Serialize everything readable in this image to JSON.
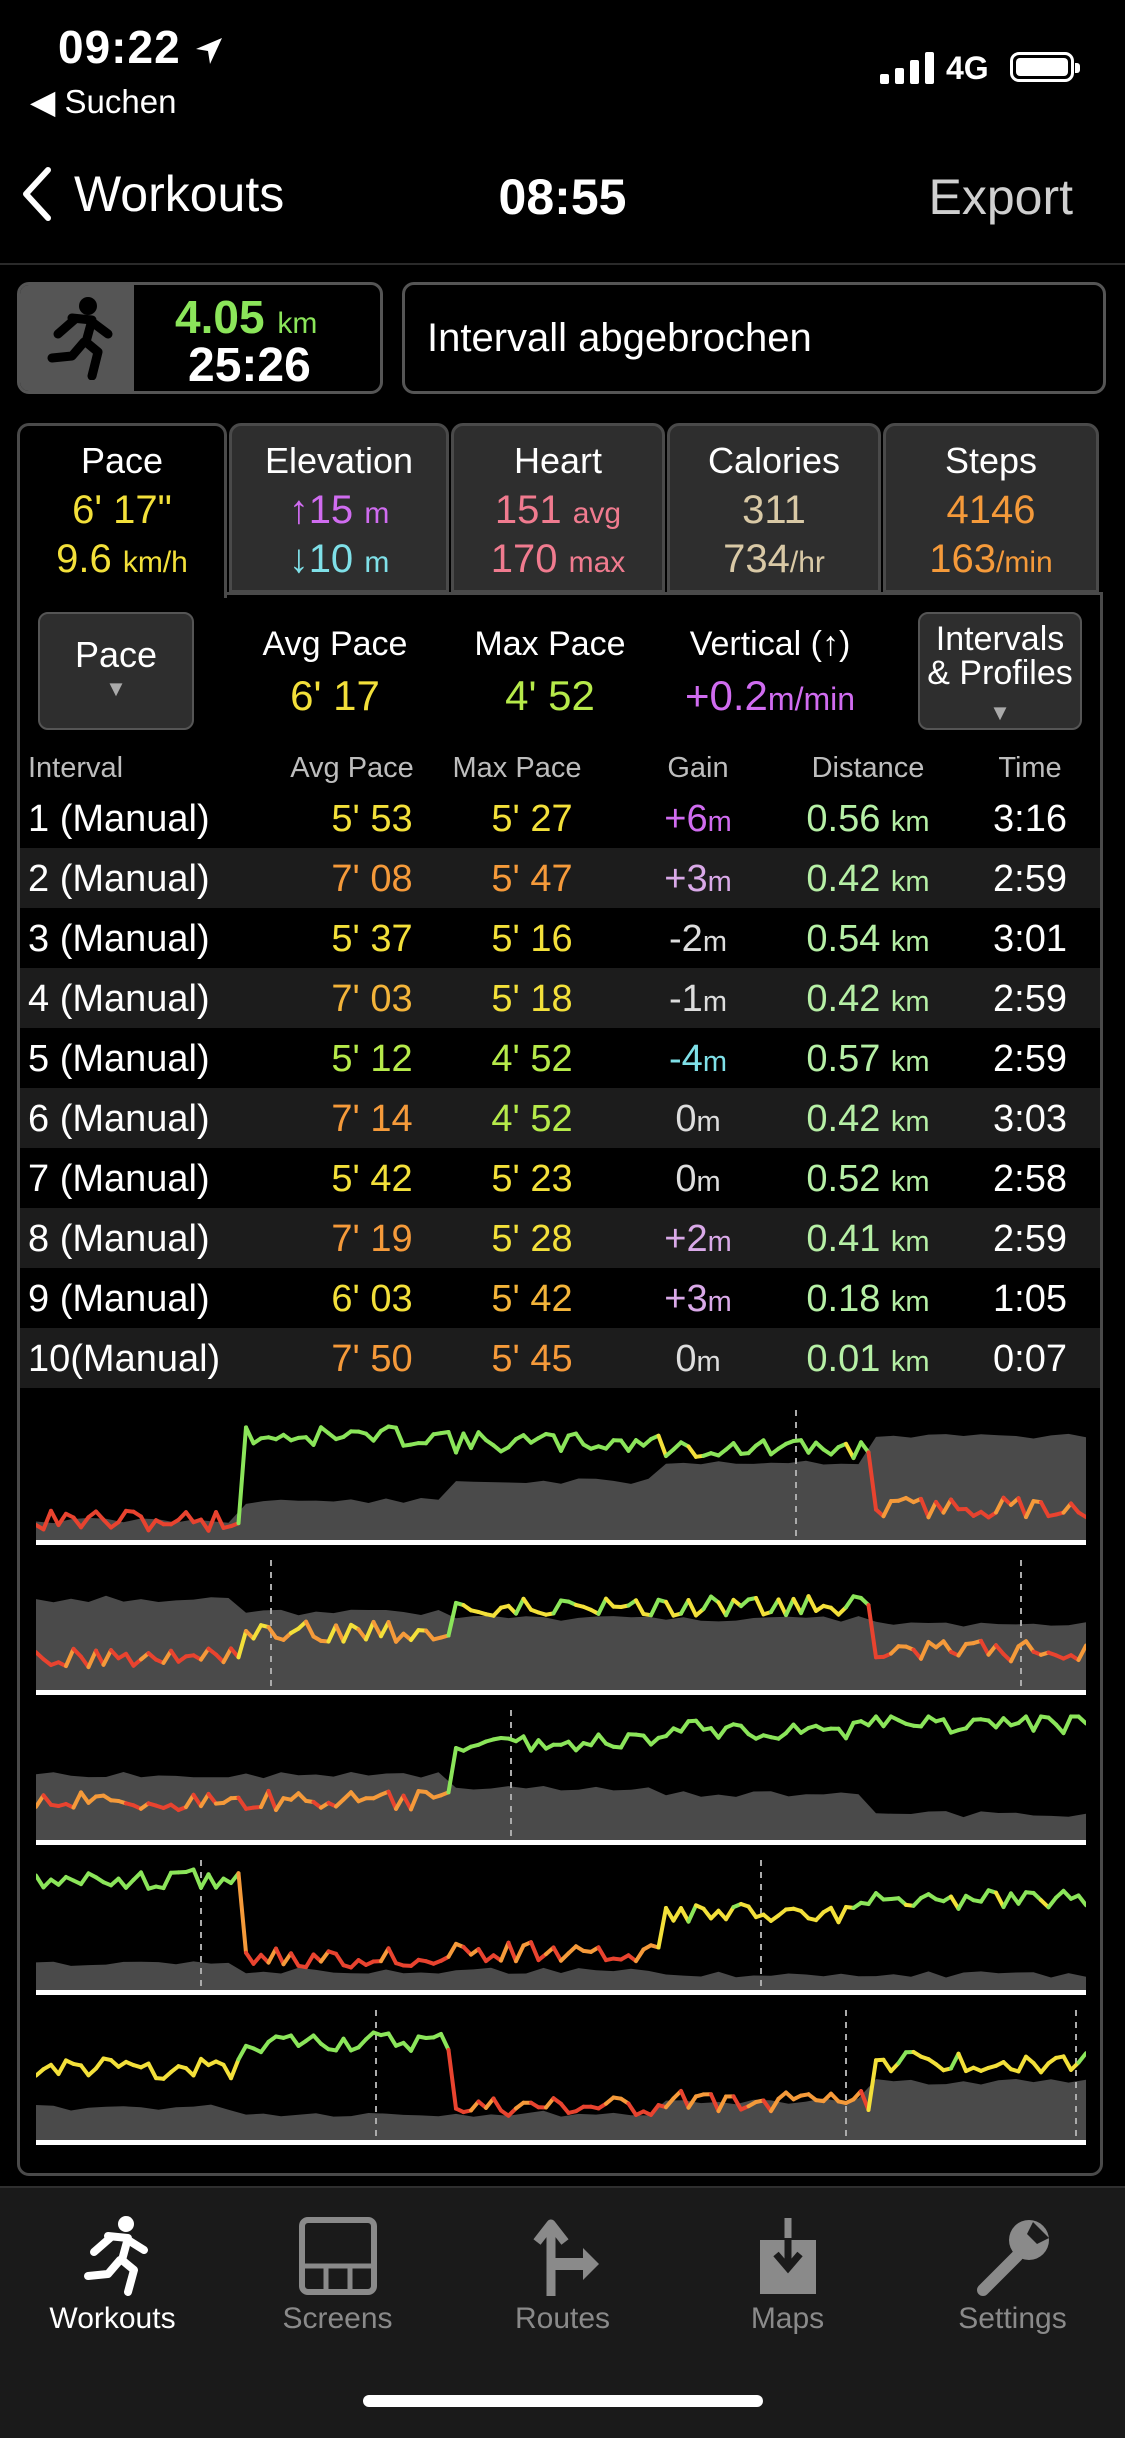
{
  "status": {
    "time": "09:22",
    "back_app": "◀ Suchen",
    "network": "4G"
  },
  "nav": {
    "back_label": "Workouts",
    "title": "08:55",
    "export_label": "Export"
  },
  "summary": {
    "distance": "4.05",
    "distance_unit": "km",
    "duration": "25:26",
    "message": "Intervall abgebrochen"
  },
  "tabs": [
    {
      "label": "Pace",
      "v1": "6' 17\"",
      "v2": "9.6",
      "v2_unit": "km/h",
      "active": true
    },
    {
      "label": "Elevation",
      "v1": "↑15",
      "v1_unit": "m",
      "v2": "↓10",
      "v2_unit": "m"
    },
    {
      "label": "Heart",
      "v1": "151",
      "v1_unit": "avg",
      "v2": "170",
      "v2_unit": "max"
    },
    {
      "label": "Calories",
      "v1": "311",
      "v2": "734",
      "v2_unit": "/hr"
    },
    {
      "label": "Steps",
      "v1": "4146",
      "v2": "163",
      "v2_unit": "/min"
    }
  ],
  "stats": {
    "pace_button": "Pace",
    "avg_pace_label": "Avg Pace",
    "avg_pace": "6' 17",
    "max_pace_label": "Max Pace",
    "max_pace": "4' 52",
    "vertical_label": "Vertical (↑)",
    "vertical": "+0.2",
    "vertical_unit": "m/min",
    "profiles_button_l1": "Intervals",
    "profiles_button_l2": "& Profiles"
  },
  "columns": [
    "Interval",
    "Avg Pace",
    "Max Pace",
    "Gain",
    "Distance",
    "Time"
  ],
  "intervals": [
    {
      "name": "1 (Manual)",
      "avg": "5' 53",
      "max": "5' 27",
      "gain": "+6",
      "dist": "0.56",
      "time": "3:16"
    },
    {
      "name": "2 (Manual)",
      "avg": "7' 08",
      "max": "5' 47",
      "gain": "+3",
      "dist": "0.42",
      "time": "2:59"
    },
    {
      "name": "3 (Manual)",
      "avg": "5' 37",
      "max": "5' 16",
      "gain": "-2",
      "dist": "0.54",
      "time": "3:01"
    },
    {
      "name": "4 (Manual)",
      "avg": "7' 03",
      "max": "5' 18",
      "gain": "-1",
      "dist": "0.42",
      "time": "2:59"
    },
    {
      "name": "5 (Manual)",
      "avg": "5' 12",
      "max": "4' 52",
      "gain": "-4",
      "dist": "0.57",
      "time": "2:59"
    },
    {
      "name": "6 (Manual)",
      "avg": "7' 14",
      "max": "4' 52",
      "gain": "0",
      "dist": "0.42",
      "time": "3:03"
    },
    {
      "name": "7 (Manual)",
      "avg": "5' 42",
      "max": "5' 23",
      "gain": "0",
      "dist": "0.52",
      "time": "2:58"
    },
    {
      "name": "8 (Manual)",
      "avg": "7' 19",
      "max": "5' 28",
      "gain": "+2",
      "dist": "0.41",
      "time": "2:59"
    },
    {
      "name": "9 (Manual)",
      "avg": "6' 03",
      "max": "5' 42",
      "gain": "+3",
      "dist": "0.18",
      "time": "1:05"
    },
    {
      "name": "10(Manual)",
      "avg": "7' 50",
      "max": "5' 45",
      "gain": "0",
      "dist": "0.01",
      "time": "0:07"
    }
  ],
  "units": {
    "m": "m",
    "km": "km"
  },
  "colors": {
    "green": "#8be55a",
    "yellow": "#f3e03a",
    "orange": "#f59a3a",
    "red": "#e8432f",
    "magenta": "#d06cf0",
    "cyan": "#7fe0e8",
    "pink": "#f07b8f",
    "accent": "#ffffff"
  },
  "tabbar": [
    {
      "label": "Workouts",
      "icon": "runner-icon",
      "active": true
    },
    {
      "label": "Screens",
      "icon": "screens-icon"
    },
    {
      "label": "Routes",
      "icon": "routes-icon"
    },
    {
      "label": "Maps",
      "icon": "maps-icon"
    },
    {
      "label": "Settings",
      "icon": "wrench-icon"
    }
  ]
}
